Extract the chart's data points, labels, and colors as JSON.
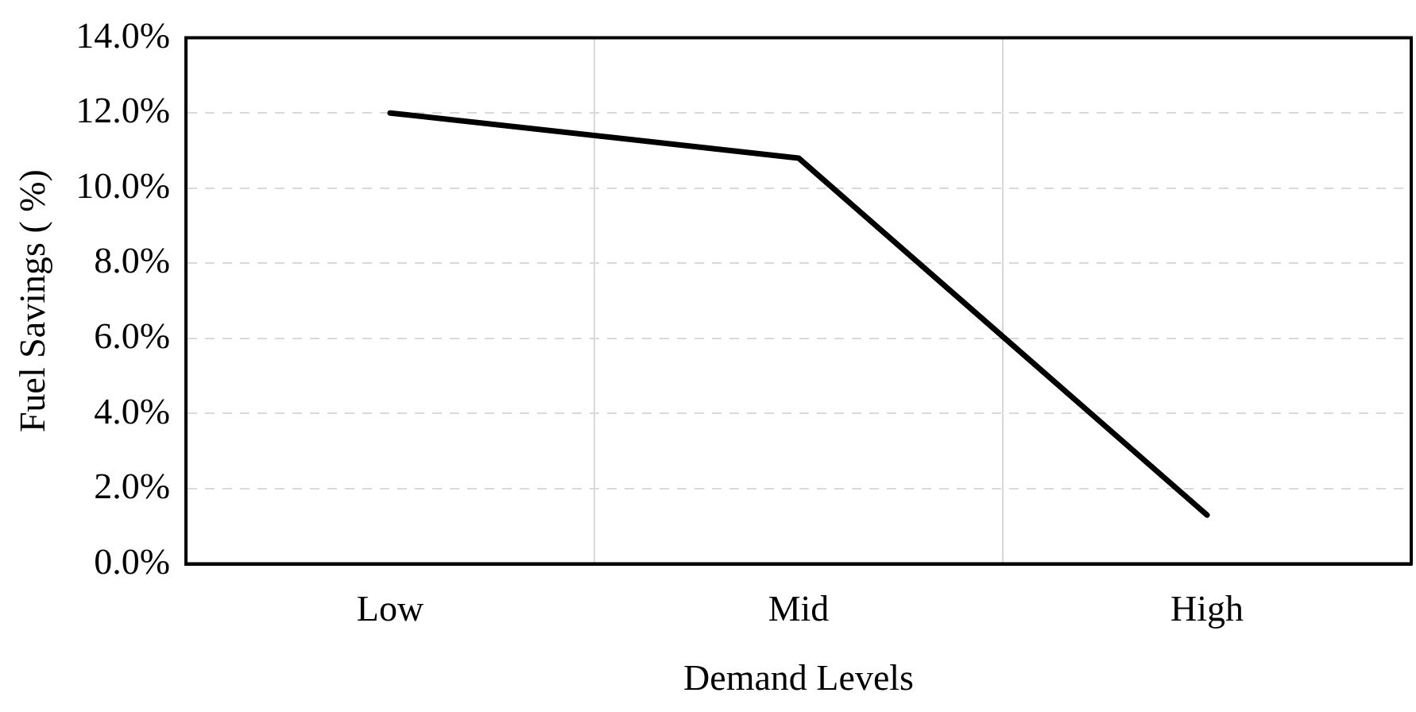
{
  "chart_data": {
    "type": "line",
    "xlabel": "Demand Levels",
    "ylabel": "Fuel Savings ( %)",
    "categories": [
      "Low",
      "Mid",
      "High"
    ],
    "series": [
      {
        "color": "#000000",
        "values": [
          12.0,
          10.8,
          1.3
        ]
      }
    ],
    "ylim": [
      0,
      14
    ],
    "yticks": [
      {
        "value": 0,
        "label": "0.0%"
      },
      {
        "value": 2,
        "label": "2.0%"
      },
      {
        "value": 4,
        "label": "4.0%"
      },
      {
        "value": 6,
        "label": "6.0%"
      },
      {
        "value": 8,
        "label": "8.0%"
      },
      {
        "value": 10,
        "label": "10.0%"
      },
      {
        "value": 12,
        "label": "12.0%"
      },
      {
        "value": 14,
        "label": "14.0%"
      }
    ],
    "grid": true,
    "legend": false,
    "marker": "none",
    "line_style": "solid"
  }
}
